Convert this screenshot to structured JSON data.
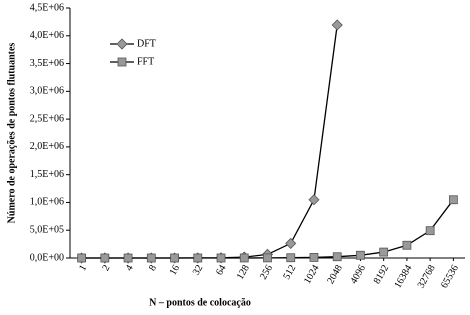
{
  "chart_data": {
    "type": "line",
    "x_label": "N – pontos de colocação",
    "y_label": "Número de operações de pontos flutuantes",
    "categories": [
      "1",
      "2",
      "4",
      "8",
      "16",
      "32",
      "64",
      "128",
      "256",
      "512",
      "1024",
      "2048",
      "4096",
      "8192",
      "16384",
      "32768",
      "65536"
    ],
    "series": [
      {
        "name": "DFT",
        "color": "#999999",
        "marker": "diamond",
        "values": [
          1,
          4,
          16,
          64,
          256,
          1024,
          4096,
          16384,
          65536,
          262144,
          1048576,
          4194304,
          null,
          null,
          null,
          null,
          null
        ]
      },
      {
        "name": "FFT",
        "color": "#999999",
        "marker": "square",
        "values": [
          0,
          2,
          8,
          24,
          64,
          160,
          384,
          896,
          2048,
          4608,
          10240,
          22528,
          49152,
          106496,
          229376,
          491520,
          1048576
        ]
      }
    ],
    "ylim": [
      0,
      4500000
    ],
    "yticks": [
      {
        "value": 0,
        "label": "0,0E+00"
      },
      {
        "value": 500000,
        "label": "5,0E+05"
      },
      {
        "value": 1000000,
        "label": "1,0E+06"
      },
      {
        "value": 1500000,
        "label": "1,5E+06"
      },
      {
        "value": 2000000,
        "label": "2,0E+06"
      },
      {
        "value": 2500000,
        "label": "2,5E+06"
      },
      {
        "value": 3000000,
        "label": "3,0E+06"
      },
      {
        "value": 3500000,
        "label": "3,5E+06"
      },
      {
        "value": 4000000,
        "label": "4,0E+06"
      },
      {
        "value": 4500000,
        "label": "4,5E+06"
      }
    ],
    "line_color": "#000000"
  }
}
